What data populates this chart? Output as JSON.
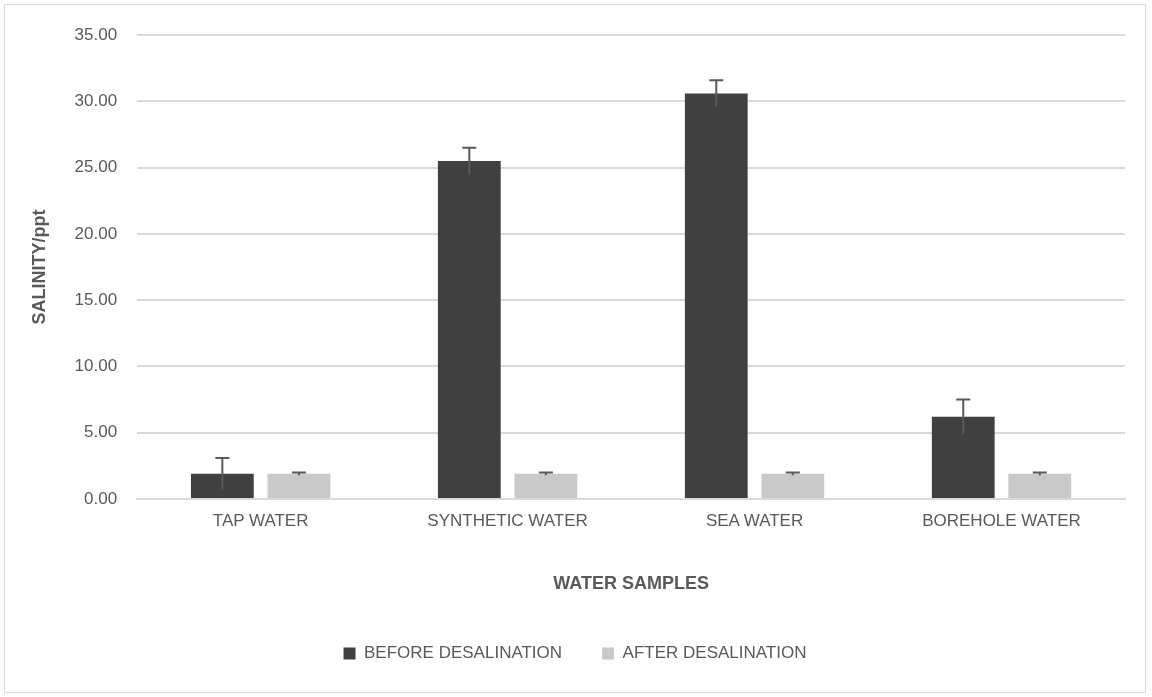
{
  "chart_data": {
    "type": "bar",
    "xlabel": "WATER SAMPLES",
    "ylabel": "SALINITY/ppt",
    "categories": [
      "TAP WATER",
      "SYNTHETIC WATER",
      "SEA WATER",
      "BOREHOLE WATER"
    ],
    "series": [
      {
        "name": "BEFORE DESALINATION",
        "color": "#404040",
        "values": [
          1.9,
          25.5,
          30.6,
          6.2
        ],
        "errors": [
          1.2,
          1.0,
          1.0,
          1.3
        ]
      },
      {
        "name": "AFTER DESALINATION",
        "color": "#c9c9c9",
        "values": [
          1.9,
          1.9,
          1.9,
          1.9
        ],
        "errors": [
          0.1,
          0.1,
          0.1,
          0.1
        ]
      }
    ],
    "ylim": [
      0,
      35
    ],
    "yticks": [
      {
        "value": 0,
        "label": "0.00"
      },
      {
        "value": 5,
        "label": "5.00"
      },
      {
        "value": 10,
        "label": "10.00"
      },
      {
        "value": 15,
        "label": "15.00"
      },
      {
        "value": 20,
        "label": "20.00"
      },
      {
        "value": 25,
        "label": "25.00"
      },
      {
        "value": 30,
        "label": "30.00"
      },
      {
        "value": 35,
        "label": "35.00"
      }
    ],
    "grid": "y",
    "legend": "bottom"
  }
}
